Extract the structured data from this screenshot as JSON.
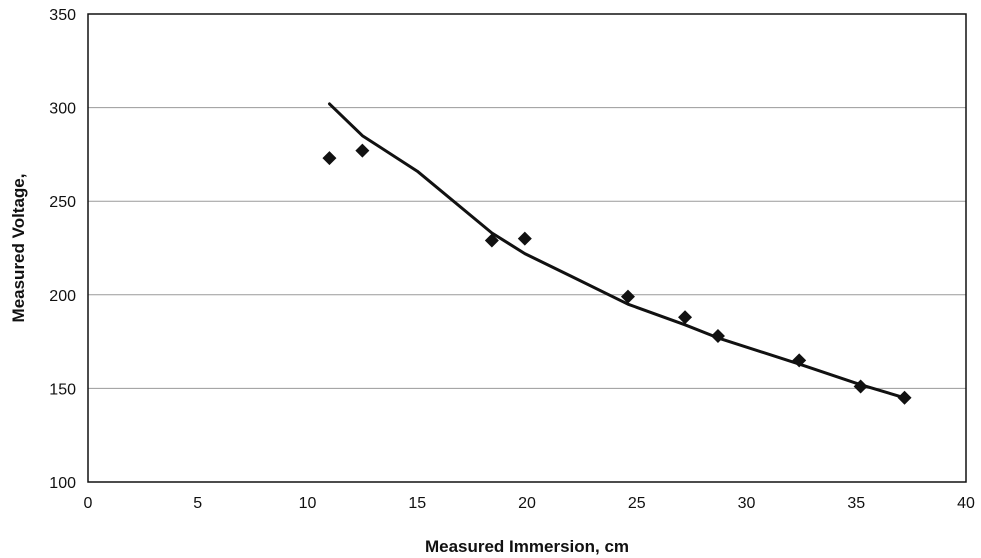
{
  "chart_data": {
    "type": "scatter",
    "title": "",
    "xlabel": "Measured Immersion, cm",
    "ylabel": "Measured Voltage,",
    "xlim": [
      0,
      40
    ],
    "ylim": [
      100,
      350
    ],
    "xticks": [
      0,
      5,
      10,
      15,
      20,
      25,
      30,
      35,
      40
    ],
    "yticks": [
      100,
      150,
      200,
      250,
      300,
      350
    ],
    "grid": "horizontal",
    "legend": "none",
    "series": [
      {
        "kind": "markers",
        "marker": "diamond",
        "points": [
          {
            "x": 11.0,
            "y": 273
          },
          {
            "x": 12.5,
            "y": 277
          },
          {
            "x": 18.4,
            "y": 229
          },
          {
            "x": 19.9,
            "y": 230
          },
          {
            "x": 24.6,
            "y": 199
          },
          {
            "x": 27.2,
            "y": 188
          },
          {
            "x": 28.7,
            "y": 178
          },
          {
            "x": 32.4,
            "y": 165
          },
          {
            "x": 35.2,
            "y": 151
          },
          {
            "x": 37.2,
            "y": 145
          }
        ]
      },
      {
        "kind": "line",
        "points": [
          {
            "x": 11.0,
            "y": 302
          },
          {
            "x": 12.5,
            "y": 285
          },
          {
            "x": 15.0,
            "y": 266
          },
          {
            "x": 18.4,
            "y": 233
          },
          {
            "x": 19.9,
            "y": 222
          },
          {
            "x": 22.0,
            "y": 210
          },
          {
            "x": 24.6,
            "y": 195
          },
          {
            "x": 27.2,
            "y": 184
          },
          {
            "x": 28.7,
            "y": 177
          },
          {
            "x": 32.4,
            "y": 163
          },
          {
            "x": 35.2,
            "y": 152
          },
          {
            "x": 37.2,
            "y": 145
          }
        ]
      }
    ],
    "colors": {
      "marks": "#111111",
      "grid": "#9a9a9a",
      "background": "#ffffff"
    }
  }
}
